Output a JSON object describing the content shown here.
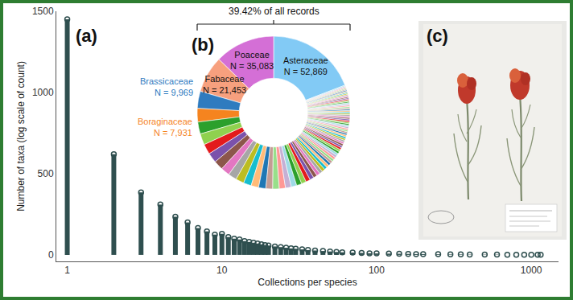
{
  "chart_data": [
    {
      "type": "lollipop",
      "title": "(a)",
      "x": [
        1,
        2,
        3,
        4,
        5,
        6,
        7,
        8,
        9,
        10,
        11,
        12,
        13,
        14,
        15,
        16,
        17,
        18,
        19,
        20,
        22,
        24,
        26,
        28,
        30,
        33,
        36,
        40,
        45,
        50,
        55,
        60,
        70,
        80,
        90,
        100,
        120,
        140,
        160,
        180,
        200,
        250,
        300,
        350,
        400,
        500,
        600,
        700,
        800,
        900,
        1000,
        1100,
        1150
      ],
      "values": [
        1450,
        620,
        385,
        310,
        235,
        200,
        165,
        145,
        125,
        130,
        110,
        100,
        95,
        85,
        80,
        75,
        70,
        65,
        60,
        58,
        52,
        48,
        44,
        40,
        38,
        34,
        30,
        27,
        24,
        21,
        18,
        16,
        14,
        12,
        10,
        9,
        8,
        7,
        6,
        5,
        5,
        4,
        3,
        3,
        2,
        2,
        2,
        1,
        1,
        1,
        1,
        1,
        1
      ],
      "xlabel": "Collections per species",
      "ylabel": "Number of taxa (log scale of count)",
      "xlim": [
        0.85,
        1500
      ],
      "ylim": [
        -40,
        1500
      ],
      "xticks": [
        1,
        10,
        100,
        1000
      ],
      "yticks": [
        0,
        500,
        1000,
        1500
      ],
      "log": "x",
      "grid": false,
      "color": "#2f4f4f",
      "marker": "circle-open"
    },
    {
      "type": "donut",
      "title": "(b)",
      "categories": [
        "Asteraceae",
        "Poaceae",
        "Fabaceae",
        "Brassicaceae",
        "Boraginaceae",
        null,
        null,
        null,
        null,
        null,
        null,
        null,
        null,
        null,
        null,
        null,
        null,
        null,
        null,
        null,
        null,
        null,
        null,
        null,
        null,
        null,
        null,
        null,
        null,
        null,
        null,
        null,
        null,
        null,
        null,
        null,
        null,
        null,
        null,
        null,
        null,
        null,
        null,
        null,
        null,
        null,
        null,
        null,
        null,
        null,
        null,
        null,
        null,
        null,
        null,
        null,
        null,
        null,
        null,
        null,
        null,
        null,
        null,
        null,
        null,
        null,
        null,
        null,
        null,
        null,
        null,
        null,
        null,
        null,
        null,
        null,
        null,
        null,
        null,
        null,
        null,
        null,
        null,
        null,
        null
      ],
      "values": [
        52869,
        35083,
        21453,
        9969,
        7931,
        7000,
        6500,
        6000,
        5800,
        5500,
        5200,
        5000,
        4800,
        4600,
        4400,
        4200,
        4000,
        3800,
        3600,
        3400,
        3200,
        3000,
        2800,
        2600,
        2400,
        2200,
        2000,
        1900,
        1800,
        1700,
        1600,
        1500,
        1500,
        1450,
        1400,
        1400,
        1350,
        1300,
        1300,
        1250,
        1200,
        1200,
        1150,
        1100,
        1100,
        1050,
        1050,
        1000,
        1000,
        980,
        960,
        950,
        940,
        920,
        900,
        900,
        880,
        860,
        850,
        840,
        820,
        800,
        800,
        780,
        780,
        760,
        760,
        740,
        740,
        720,
        720,
        700,
        700,
        680,
        680,
        660,
        660,
        640,
        640,
        620,
        620,
        600,
        580,
        560,
        540
      ],
      "value_labels": [
        "N = 52,869",
        "N = 35,083",
        "N = 21,453",
        "N = 9,969",
        "N = 7,931",
        null,
        null,
        null,
        null,
        null,
        null,
        null,
        null,
        null,
        null,
        null,
        null,
        null,
        null,
        null,
        null,
        null,
        null,
        null,
        null,
        null,
        null,
        null,
        null,
        null,
        null,
        null,
        null,
        null,
        null,
        null,
        null,
        null,
        null,
        null,
        null,
        null,
        null,
        null,
        null,
        null,
        null,
        null,
        null,
        null,
        null,
        null,
        null,
        null,
        null,
        null,
        null,
        null,
        null,
        null,
        null,
        null,
        null,
        null,
        null,
        null,
        null,
        null,
        null,
        null,
        null,
        null,
        null,
        null,
        null,
        null,
        null,
        null,
        null,
        null,
        null,
        null,
        null,
        null,
        null
      ],
      "colors": [
        "#82caf5",
        "#d46fd6",
        "#f7a07e",
        "#2f7bbf",
        "#f5841f",
        "#2ca02c",
        "#8fd14f",
        "#e31a1c",
        "#7b52ab",
        "#8c564b",
        "#e377c2",
        "#a6a6a6",
        "#bcbd22",
        "#17becf",
        "#ffbb78",
        "#1f77b4",
        "#c49c94",
        "#98df8a",
        "#ff9896",
        "#c5b0d5",
        "#9edae5",
        "#2ca02c",
        "#8fd14f",
        "#e31a1c",
        "#7b52ab",
        "#8c564b",
        "#e377c2",
        "#a6a6a6",
        "#bcbd22",
        "#17becf",
        "#ffbb78",
        "#1f77b4",
        "#c49c94",
        "#98df8a",
        "#ff9896",
        "#c5b0d5",
        "#9edae5",
        "#2ca02c",
        "#8fd14f",
        "#e31a1c",
        "#7b52ab",
        "#8c564b",
        "#e377c2",
        "#a6a6a6",
        "#bcbd22",
        "#17becf",
        "#ffbb78",
        "#1f77b4",
        "#c49c94",
        "#98df8a",
        "#ff9896",
        "#c5b0d5",
        "#9edae5",
        "#2ca02c",
        "#8fd14f",
        "#e31a1c",
        "#7b52ab",
        "#8c564b",
        "#e377c2",
        "#a6a6a6",
        "#bcbd22",
        "#17becf",
        "#ffbb78",
        "#1f77b4",
        "#c49c94",
        "#98df8a",
        "#ff9896",
        "#c5b0d5",
        "#9edae5",
        "#2ca02c",
        "#8fd14f",
        "#e31a1c",
        "#7b52ab",
        "#8c564b",
        "#e377c2",
        "#a6a6a6",
        "#bcbd22",
        "#17becf",
        "#ffbb78",
        "#1f77b4",
        "#c49c94",
        "#98df8a",
        "#ff9896",
        "#c5b0d5",
        "#9edae5"
      ],
      "annotations": [
        "39.42% of all records"
      ]
    }
  ],
  "image": {
    "title": "(c)"
  }
}
